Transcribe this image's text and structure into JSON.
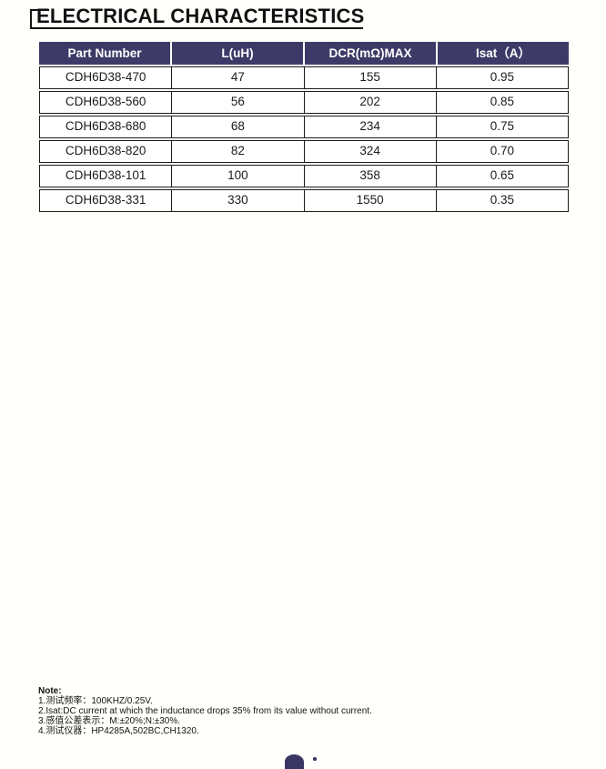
{
  "page": {
    "title": "ELECTRICAL CHARACTERISTICS"
  },
  "colors": {
    "header_bg": "#3e3a68",
    "logo_color": "#3a3664",
    "table_border": "#1c1c1c"
  },
  "table": {
    "columns": [
      "Part Number",
      "L(uH)",
      "DCR(mΩ)MAX",
      "Isat（A）"
    ],
    "rows": [
      [
        "CDH6D38-470",
        "47",
        "155",
        "0.95"
      ],
      [
        "CDH6D38-560",
        "56",
        "202",
        "0.85"
      ],
      [
        "CDH6D38-680",
        "68",
        "234",
        "0.75"
      ],
      [
        "CDH6D38-820",
        "82",
        "324",
        "0.70"
      ],
      [
        "CDH6D38-101",
        "100",
        "358",
        "0.65"
      ],
      [
        "CDH6D38-331",
        "330",
        "1550",
        "0.35"
      ]
    ]
  },
  "notes": {
    "label": "Note:",
    "items": [
      "1.测试频率：100KHZ/0.25V.",
      "2.Isat:DC current at which the inductance drops 35% from its value without current.",
      "3.感值公差表示：M:±20%;N:±30%.",
      "4.测试仪器：HP4285A,502BC,CH1320."
    ]
  }
}
